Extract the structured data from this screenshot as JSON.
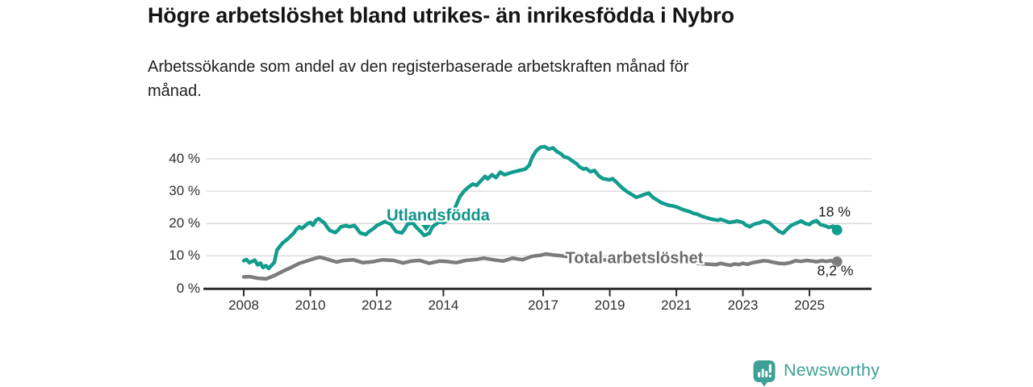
{
  "header": {
    "title": "Högre arbetslöshet bland utrikes- än inrikesfödda i Nybro",
    "subtitle_lines": [
      "Arbetssökande som andel av den registerbaserade arbetskraften månad för",
      "månad."
    ]
  },
  "chart_data": {
    "type": "line",
    "title": "Högre arbetslöshet bland utrikes- än inrikesfödda i Nybro",
    "subtitle": "Arbetssökande som andel av den registerbaserade arbetskraften månad för månad.",
    "xlabel": "",
    "ylabel": "",
    "x_axis": {
      "unit": "year",
      "tick_years": [
        2008,
        2010,
        2012,
        2014,
        2017,
        2019,
        2021,
        2023,
        2025
      ],
      "range": [
        2007.8,
        2026.3
      ]
    },
    "y_axis": {
      "unit": "percent",
      "ticks": [
        0,
        10,
        20,
        30,
        40
      ],
      "tick_labels": [
        "0 %",
        "10 %",
        "20 %",
        "30 %",
        "40 %"
      ],
      "range": [
        0,
        45
      ],
      "gridlines": true
    },
    "legend_position": "inline-labels",
    "series": [
      {
        "name": "Utlandsfödda",
        "color": "#129c8d",
        "line_width": 4.5,
        "end_dot": true,
        "end_label": "18 %",
        "end_value_pct": 18,
        "points": [
          [
            2008.0,
            8.5
          ],
          [
            2008.08,
            8.9
          ],
          [
            2008.17,
            7.9
          ],
          [
            2008.33,
            8.7
          ],
          [
            2008.42,
            7.2
          ],
          [
            2008.5,
            7.8
          ],
          [
            2008.58,
            6.4
          ],
          [
            2008.67,
            7.0
          ],
          [
            2008.75,
            6.1
          ],
          [
            2008.92,
            8.0
          ],
          [
            2009.0,
            11.8
          ],
          [
            2009.17,
            14.0
          ],
          [
            2009.33,
            15.3
          ],
          [
            2009.5,
            17.0
          ],
          [
            2009.58,
            18.2
          ],
          [
            2009.67,
            19.0
          ],
          [
            2009.75,
            18.5
          ],
          [
            2009.92,
            20.0
          ],
          [
            2010.0,
            20.3
          ],
          [
            2010.08,
            19.5
          ],
          [
            2010.17,
            21.0
          ],
          [
            2010.25,
            21.5
          ],
          [
            2010.42,
            20.2
          ],
          [
            2010.5,
            19.0
          ],
          [
            2010.58,
            17.9
          ],
          [
            2010.75,
            17.2
          ],
          [
            2010.83,
            17.9
          ],
          [
            2010.92,
            19.0
          ],
          [
            2011.08,
            19.4
          ],
          [
            2011.17,
            19.0
          ],
          [
            2011.33,
            19.4
          ],
          [
            2011.42,
            18.2
          ],
          [
            2011.5,
            17.1
          ],
          [
            2011.67,
            16.6
          ],
          [
            2011.75,
            17.4
          ],
          [
            2011.92,
            18.6
          ],
          [
            2012.0,
            19.4
          ],
          [
            2012.17,
            20.2
          ],
          [
            2012.25,
            20.6
          ],
          [
            2012.42,
            19.8
          ],
          [
            2012.5,
            18.6
          ],
          [
            2012.58,
            17.5
          ],
          [
            2012.75,
            17.1
          ],
          [
            2012.83,
            18.2
          ],
          [
            2012.92,
            19.8
          ],
          [
            2013.08,
            20.2
          ],
          [
            2013.17,
            19.0
          ],
          [
            2013.33,
            17.4
          ],
          [
            2013.42,
            16.3
          ],
          [
            2013.58,
            17.0
          ],
          [
            2013.67,
            19.0
          ],
          [
            2013.83,
            20.2
          ],
          [
            2013.92,
            20.6
          ],
          [
            2014.0,
            20.2
          ],
          [
            2014.08,
            20.7
          ],
          [
            2014.25,
            22.3
          ],
          [
            2014.38,
            25.6
          ],
          [
            2014.5,
            28.4
          ],
          [
            2014.63,
            30.1
          ],
          [
            2014.75,
            31.2
          ],
          [
            2014.88,
            32.2
          ],
          [
            2015.0,
            31.8
          ],
          [
            2015.08,
            32.7
          ],
          [
            2015.25,
            34.6
          ],
          [
            2015.33,
            33.8
          ],
          [
            2015.46,
            35.1
          ],
          [
            2015.58,
            34.2
          ],
          [
            2015.71,
            35.9
          ],
          [
            2015.83,
            35.1
          ],
          [
            2015.96,
            35.5
          ],
          [
            2016.08,
            35.9
          ],
          [
            2016.21,
            36.2
          ],
          [
            2016.33,
            36.5
          ],
          [
            2016.46,
            36.8
          ],
          [
            2016.58,
            38.0
          ],
          [
            2016.67,
            40.5
          ],
          [
            2016.79,
            42.5
          ],
          [
            2016.92,
            43.6
          ],
          [
            2017.04,
            43.8
          ],
          [
            2017.17,
            43.0
          ],
          [
            2017.29,
            43.4
          ],
          [
            2017.42,
            42.2
          ],
          [
            2017.54,
            41.5
          ],
          [
            2017.63,
            40.6
          ],
          [
            2017.75,
            40.3
          ],
          [
            2017.88,
            39.3
          ],
          [
            2018.0,
            38.5
          ],
          [
            2018.08,
            37.6
          ],
          [
            2018.21,
            36.8
          ],
          [
            2018.29,
            37.0
          ],
          [
            2018.42,
            36.0
          ],
          [
            2018.54,
            36.4
          ],
          [
            2018.67,
            34.7
          ],
          [
            2018.79,
            33.9
          ],
          [
            2019.0,
            33.5
          ],
          [
            2019.08,
            33.9
          ],
          [
            2019.21,
            32.7
          ],
          [
            2019.33,
            31.4
          ],
          [
            2019.42,
            30.6
          ],
          [
            2019.54,
            29.7
          ],
          [
            2019.67,
            28.9
          ],
          [
            2019.79,
            28.1
          ],
          [
            2019.92,
            28.5
          ],
          [
            2020.04,
            29.0
          ],
          [
            2020.17,
            29.4
          ],
          [
            2020.29,
            28.1
          ],
          [
            2020.42,
            27.3
          ],
          [
            2020.54,
            26.5
          ],
          [
            2020.67,
            26.0
          ],
          [
            2020.79,
            25.6
          ],
          [
            2020.92,
            25.4
          ],
          [
            2021.04,
            25.0
          ],
          [
            2021.17,
            24.4
          ],
          [
            2021.29,
            24.0
          ],
          [
            2021.42,
            23.6
          ],
          [
            2021.5,
            23.2
          ],
          [
            2021.63,
            22.9
          ],
          [
            2021.75,
            22.3
          ],
          [
            2021.88,
            21.9
          ],
          [
            2022.0,
            21.5
          ],
          [
            2022.08,
            21.3
          ],
          [
            2022.25,
            21.0
          ],
          [
            2022.33,
            21.3
          ],
          [
            2022.5,
            20.7
          ],
          [
            2022.58,
            20.3
          ],
          [
            2022.75,
            20.6
          ],
          [
            2022.83,
            20.8
          ],
          [
            2023.0,
            20.3
          ],
          [
            2023.08,
            19.6
          ],
          [
            2023.21,
            19.0
          ],
          [
            2023.33,
            19.8
          ],
          [
            2023.5,
            20.2
          ],
          [
            2023.63,
            20.8
          ],
          [
            2023.79,
            20.2
          ],
          [
            2023.92,
            19.0
          ],
          [
            2024.08,
            17.6
          ],
          [
            2024.21,
            17.0
          ],
          [
            2024.33,
            18.3
          ],
          [
            2024.46,
            19.5
          ],
          [
            2024.58,
            20.0
          ],
          [
            2024.75,
            20.8
          ],
          [
            2024.88,
            20.0
          ],
          [
            2025.0,
            19.7
          ],
          [
            2025.08,
            20.4
          ],
          [
            2025.21,
            20.9
          ],
          [
            2025.33,
            19.7
          ],
          [
            2025.5,
            19.2
          ],
          [
            2025.58,
            18.8
          ],
          [
            2025.71,
            19.2
          ],
          [
            2025.83,
            18.0
          ]
        ]
      },
      {
        "name": "Total arbetslöshet",
        "color": "#7c7c7c",
        "line_width": 4.5,
        "end_dot": true,
        "end_label": "8,2 %",
        "end_value_pct": 8.2,
        "points": [
          [
            2008.0,
            3.5
          ],
          [
            2008.17,
            3.6
          ],
          [
            2008.42,
            3.1
          ],
          [
            2008.67,
            2.9
          ],
          [
            2008.92,
            3.9
          ],
          [
            2009.17,
            5.2
          ],
          [
            2009.42,
            6.4
          ],
          [
            2009.67,
            7.7
          ],
          [
            2009.92,
            8.5
          ],
          [
            2010.13,
            9.2
          ],
          [
            2010.29,
            9.6
          ],
          [
            2010.54,
            8.9
          ],
          [
            2010.79,
            8.1
          ],
          [
            2011.0,
            8.6
          ],
          [
            2011.29,
            8.8
          ],
          [
            2011.58,
            7.9
          ],
          [
            2011.88,
            8.2
          ],
          [
            2012.17,
            8.8
          ],
          [
            2012.5,
            8.6
          ],
          [
            2012.79,
            7.8
          ],
          [
            2013.04,
            8.4
          ],
          [
            2013.29,
            8.6
          ],
          [
            2013.58,
            7.7
          ],
          [
            2013.88,
            8.4
          ],
          [
            2014.08,
            8.3
          ],
          [
            2014.38,
            7.9
          ],
          [
            2014.67,
            8.6
          ],
          [
            2015.0,
            8.9
          ],
          [
            2015.21,
            9.3
          ],
          [
            2015.5,
            8.8
          ],
          [
            2015.79,
            8.4
          ],
          [
            2016.08,
            9.3
          ],
          [
            2016.38,
            8.8
          ],
          [
            2016.67,
            9.9
          ],
          [
            2016.92,
            10.2
          ],
          [
            2017.08,
            10.6
          ],
          [
            2017.29,
            10.3
          ],
          [
            2017.58,
            10.0
          ],
          [
            2017.88,
            9.6
          ],
          [
            2018.17,
            9.3
          ],
          [
            2018.5,
            9.0
          ],
          [
            2018.79,
            8.8
          ],
          [
            2019.08,
            8.6
          ],
          [
            2019.38,
            8.4
          ],
          [
            2019.67,
            8.3
          ],
          [
            2020.0,
            8.5
          ],
          [
            2020.29,
            9.0
          ],
          [
            2020.58,
            8.8
          ],
          [
            2020.88,
            8.6
          ],
          [
            2021.17,
            8.2
          ],
          [
            2021.46,
            7.9
          ],
          [
            2021.75,
            7.6
          ],
          [
            2022.0,
            7.4
          ],
          [
            2022.21,
            7.3
          ],
          [
            2022.33,
            7.7
          ],
          [
            2022.5,
            7.3
          ],
          [
            2022.63,
            7.1
          ],
          [
            2022.75,
            7.5
          ],
          [
            2022.88,
            7.3
          ],
          [
            2023.0,
            7.7
          ],
          [
            2023.13,
            7.4
          ],
          [
            2023.29,
            7.9
          ],
          [
            2023.46,
            8.2
          ],
          [
            2023.63,
            8.5
          ],
          [
            2023.75,
            8.4
          ],
          [
            2023.92,
            8.0
          ],
          [
            2024.08,
            7.7
          ],
          [
            2024.25,
            7.6
          ],
          [
            2024.42,
            7.9
          ],
          [
            2024.58,
            8.5
          ],
          [
            2024.75,
            8.3
          ],
          [
            2024.92,
            8.6
          ],
          [
            2025.08,
            8.4
          ],
          [
            2025.21,
            8.2
          ],
          [
            2025.38,
            8.5
          ],
          [
            2025.5,
            8.3
          ],
          [
            2025.63,
            8.5
          ],
          [
            2025.83,
            8.2
          ]
        ]
      }
    ],
    "annotations": [
      {
        "text": "Utlandsfödda",
        "series": "Utlandsfödda",
        "marker": "triangle-down"
      },
      {
        "text": "Total arbetslöshet",
        "series": "Total arbetslöshet",
        "marker": "none"
      },
      {
        "text": "18 %",
        "role": "end-value",
        "series": "Utlandsfödda"
      },
      {
        "text": "8,2 %",
        "role": "end-value",
        "series": "Total arbetslöshet"
      }
    ]
  },
  "labels": {
    "utlandsfodda": "Utlandsfödda",
    "total": "Total arbetslöshet",
    "end_teal": "18 %",
    "end_gray": "8,2 %"
  },
  "footer": {
    "brand_name": "Newsworthy",
    "brand_color": "#3fa096"
  },
  "colors": {
    "series_teal": "#129c8d",
    "series_gray": "#7c7c7c",
    "gridline": "#d7d7d7",
    "axis": "#2d2d2d",
    "title_text": "#141414"
  }
}
